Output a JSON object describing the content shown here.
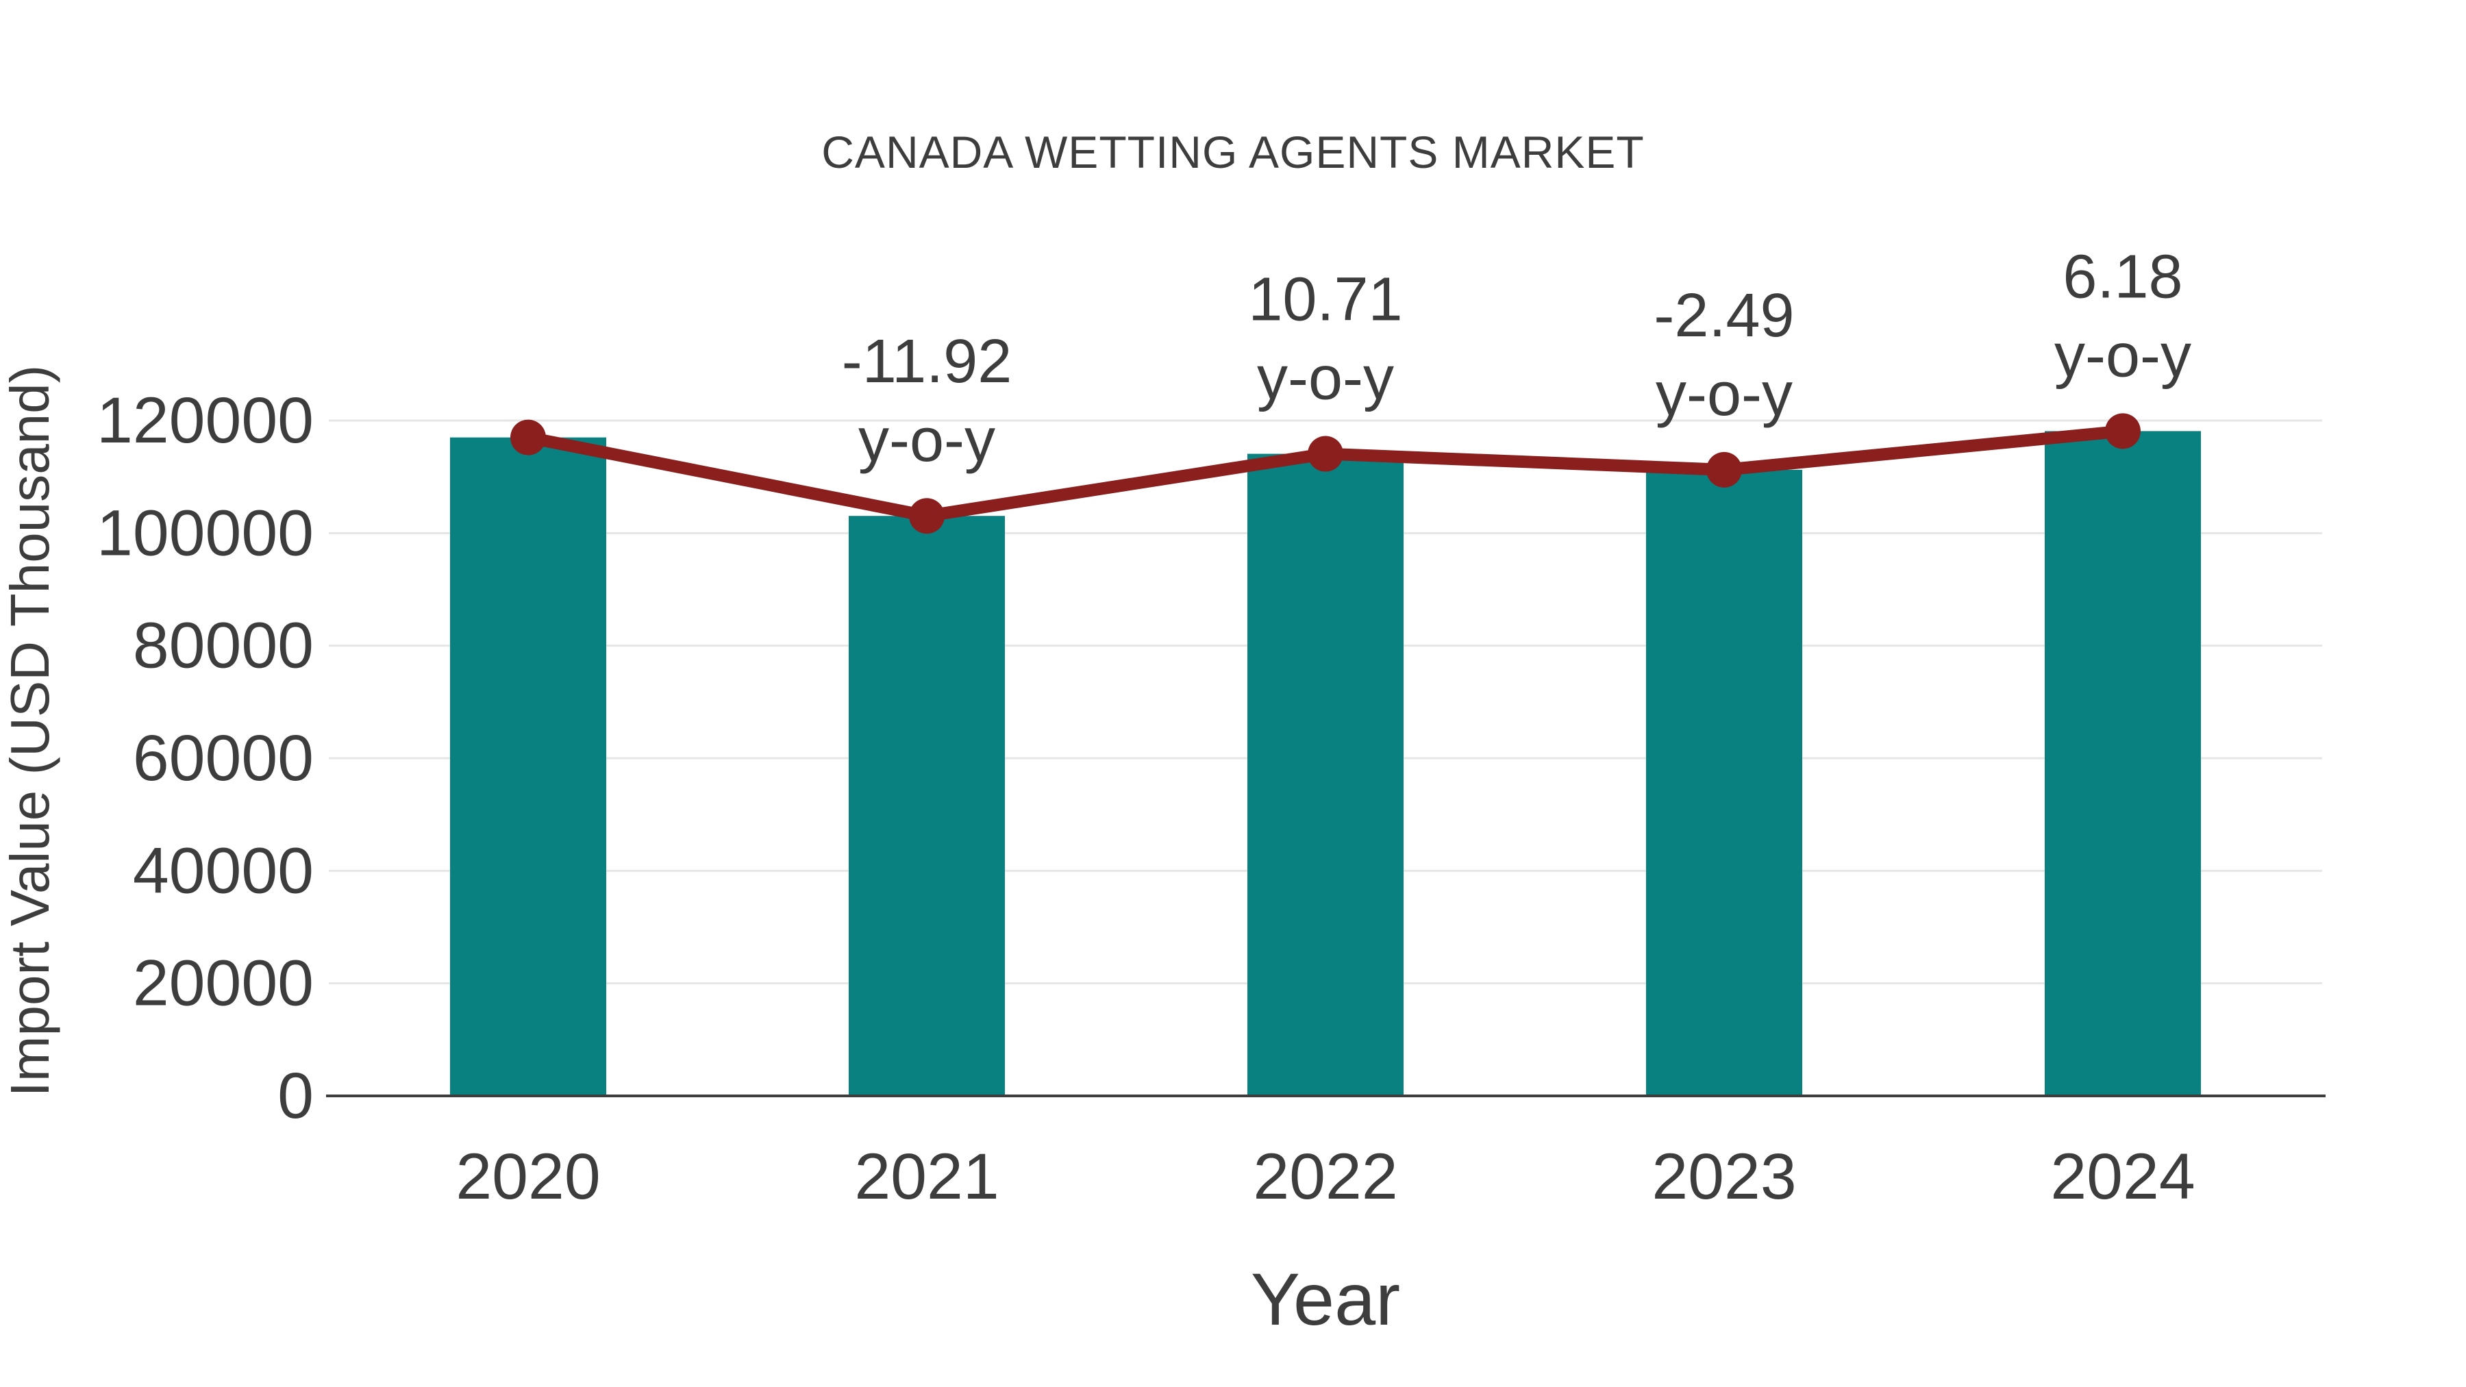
{
  "chart_data": {
    "type": "bar",
    "title": "CANADA WETTING AGENTS MARKET",
    "xlabel": "Year",
    "ylabel": "Import Value (USD Thousand)",
    "categories": [
      "2020",
      "2021",
      "2022",
      "2023",
      "2024"
    ],
    "series": [
      {
        "name": "Import Value",
        "type": "bar",
        "values": [
          117000,
          103054,
          114090,
          111250,
          118124
        ]
      },
      {
        "name": "y-o-y trend line",
        "type": "line",
        "values": [
          117000,
          103054,
          114090,
          111250,
          118124
        ]
      }
    ],
    "annotations": [
      {
        "category": "2021",
        "value_label": "-11.92",
        "suffix_label": "y-o-y"
      },
      {
        "category": "2022",
        "value_label": "10.71",
        "suffix_label": "y-o-y"
      },
      {
        "category": "2023",
        "value_label": "-2.49",
        "suffix_label": "y-o-y"
      },
      {
        "category": "2024",
        "value_label": "6.18",
        "suffix_label": "y-o-y"
      }
    ],
    "ytick_values": [
      0,
      20000,
      40000,
      60000,
      80000,
      100000,
      120000
    ],
    "ylim": [
      0,
      120000
    ],
    "grid": "horizontal",
    "legend_position": "none",
    "colors": {
      "bar": "#088180",
      "line": "#8B1F1E",
      "marker": "#8B1F1E",
      "text": "#3D3D3D",
      "grid": "#E6E6E6",
      "axis": "#3D3D3D",
      "background": "#FFFFFF"
    }
  }
}
